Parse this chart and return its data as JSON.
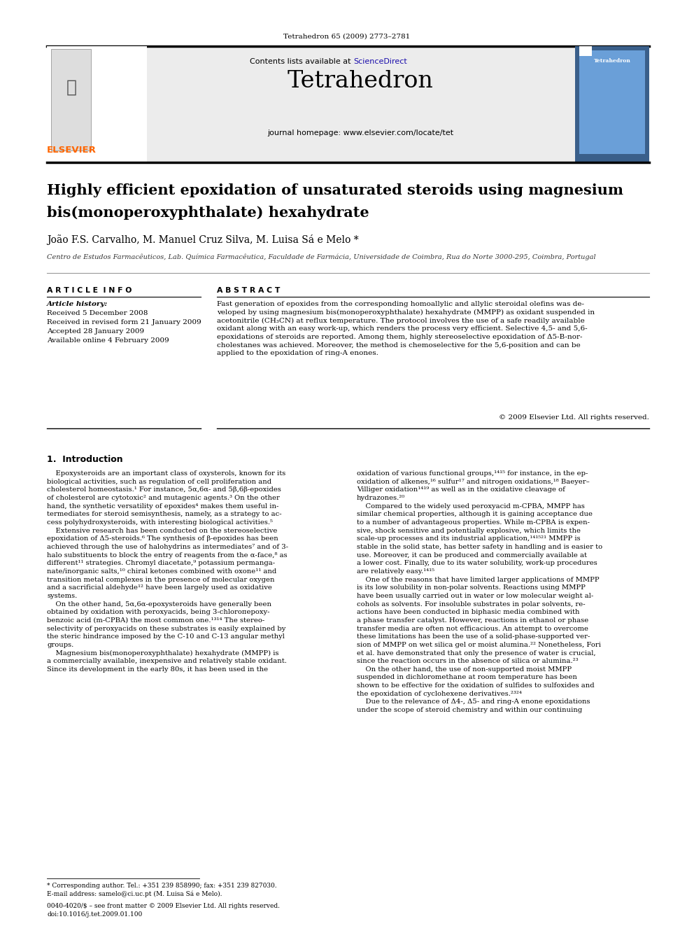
{
  "page_width": 9.92,
  "page_height": 13.23,
  "bg_color": "#ffffff",
  "journal_ref": "Tetrahedron 65 (2009) 2773–2781",
  "header_bg": "#e8e8e8",
  "header_title": "Tetrahedron",
  "header_homepage": "journal homepage: www.elsevier.com/locate/tet",
  "article_title_line1": "Highly efficient epoxidation of unsaturated steroids using magnesium",
  "article_title_line2": "bis(monoperoxyphthalate) hexahydrate",
  "authors": "João F.S. Carvalho, M. Manuel Cruz Silva, M. Luisa Sá e Melo *",
  "affiliation": "Centro de Estudos Farmacêuticos, Lab. Química Farmacêutica, Faculdade de Farmácia, Universidade de Coimbra, Rua do Norte 3000-295, Coimbra, Portugal",
  "article_info_label": "A R T I C L E  I N F O",
  "abstract_label": "A B S T R A C T",
  "article_history_label": "Article history:",
  "received": "Received 5 December 2008",
  "revised": "Received in revised form 21 January 2009",
  "accepted": "Accepted 28 January 2009",
  "available": "Available online 4 February 2009",
  "abstract_text": "Fast generation of epoxides from the corresponding homoallylic and allylic steroidal olefins was de-\nveloped by using magnesium bis(monoperoxyphthalate) hexahydrate (MMPP) as oxidant suspended in\nacetonitrile (CH₃CN) at reflux temperature. The protocol involves the use of a safe readily available\noxidant along with an easy work-up, which renders the process very efficient. Selective 4,5- and 5,6-\nepoxidations of steroids are reported. Among them, highly stereoselective epoxidation of Δ5-B-nor-\ncholestanes was achieved. Moreover, the method is chemoselective for the 5,6-position and can be\napplied to the epoxidation of ring-A enones.",
  "copyright": "© 2009 Elsevier Ltd. All rights reserved.",
  "intro_heading": "1.  Introduction",
  "intro_col1_lines": [
    "    Epoxysteroids are an important class of oxysterols, known for its",
    "biological activities, such as regulation of cell proliferation and",
    "cholesterol homeostasis.¹ For instance, 5α,6α- and 5β,6β-epoxides",
    "of cholesterol are cytotoxic² and mutagenic agents.³ On the other",
    "hand, the synthetic versatility of epoxides⁴ makes them useful in-",
    "termediates for steroid semisynthesis, namely, as a strategy to ac-",
    "cess polyhydroxysteroids, with interesting biological activities.⁵",
    "    Extensive research has been conducted on the stereoselective",
    "epoxidation of Δ5-steroids.⁶ The synthesis of β-epoxides has been",
    "achieved through the use of halohydrins as intermediates⁷ and of 3-",
    "halo substituents to block the entry of reagents from the α-face,⁸ as",
    "different¹¹ strategies. Chromyl diacetate,⁹ potassium permanga-",
    "nate/inorganic salts,¹⁰ chiral ketones combined with oxone¹¹ and",
    "transition metal complexes in the presence of molecular oxygen",
    "and a sacrificial aldehyde¹² have been largely used as oxidative",
    "systems.",
    "    On the other hand, 5α,6α-epoxysteroids have generally been",
    "obtained by oxidation with peroxyacids, being 3-chloroперoxy-",
    "benzoic acid (m-CPBA) the most common one.¹³¹⁴ The stereo-",
    "selectivity of peroxyacids on these substrates is easily explained by",
    "the steric hindrance imposed by the C-10 and C-13 angular methyl",
    "groups.",
    "    Magnesium bis(monoperoxyphthalate) hexahydrate (MMPP) is",
    "a commercially available, inexpensive and relatively stable oxidant.",
    "Since its development in the early 80s, it has been used in the"
  ],
  "intro_col2_lines": [
    "oxidation of various functional groups,¹⁴¹⁵ for instance, in the ep-",
    "oxidation of alkenes,¹⁶ sulfur¹⁷ and nitrogen oxidations,¹⁸ Baeyer–",
    "Villiger oxidation¹⁴¹⁹ as well as in the oxidative cleavage of",
    "hydrazones.²⁰",
    "    Compared to the widely used peroxyacid m-CPBA, MMPP has",
    "similar chemical properties, although it is gaining acceptance due",
    "to a number of advantageous properties. While m-CPBA is expen-",
    "sive, shock sensitive and potentially explosive, which limits the",
    "scale-up processes and its industrial application,¹⁴¹⁵²¹ MMPP is",
    "stable in the solid state, has better safety in handling and is easier to",
    "use. Moreover, it can be produced and commercially available at",
    "a lower cost. Finally, due to its water solubility, work-up procedures",
    "are relatively easy.¹⁴¹⁵",
    "    One of the reasons that have limited larger applications of MMPP",
    "is its low solubility in non-polar solvents. Reactions using MMPP",
    "have been usually carried out in water or low molecular weight al-",
    "cohols as solvents. For insoluble substrates in polar solvents, re-",
    "actions have been conducted in biphasic media combined with",
    "a phase transfer catalyst. However, reactions in ethanol or phase",
    "transfer media are often not efficacious. An attempt to overcome",
    "these limitations has been the use of a solid-phase-supported ver-",
    "sion of MMPP on wet silica gel or moist alumina.²² Nonetheless, Fori",
    "et al. have demonstrated that only the presence of water is crucial,",
    "since the reaction occurs in the absence of silica or alumina.²³",
    "    On the other hand, the use of non-supported moist MMPP",
    "suspended in dichloromethane at room temperature has been",
    "shown to be effective for the oxidation of sulfides to sulfoxides and",
    "the epoxidation of cyclohexene derivatives.²³²⁴",
    "    Due to the relevance of Δ4-, Δ5- and ring-A enone epoxidations",
    "under the scope of steroid chemistry and within our continuing"
  ],
  "footer_note": "* Corresponding author. Tel.: +351 239 858990; fax: +351 239 827030.",
  "footer_email": "E-mail address: samelo@ci.uc.pt (M. Luisa Sá e Melo).",
  "footer_issn": "0040-4020/$ – see front matter © 2009 Elsevier Ltd. All rights reserved.",
  "footer_doi": "doi:10.1016/j.tet.2009.01.100",
  "elsevier_color": "#ff6600",
  "black": "#000000",
  "dark_gray": "#333333",
  "link_color": "#1a0dab",
  "cover_color": "#3a5f8a",
  "cover_color2": "#6a9fd8"
}
